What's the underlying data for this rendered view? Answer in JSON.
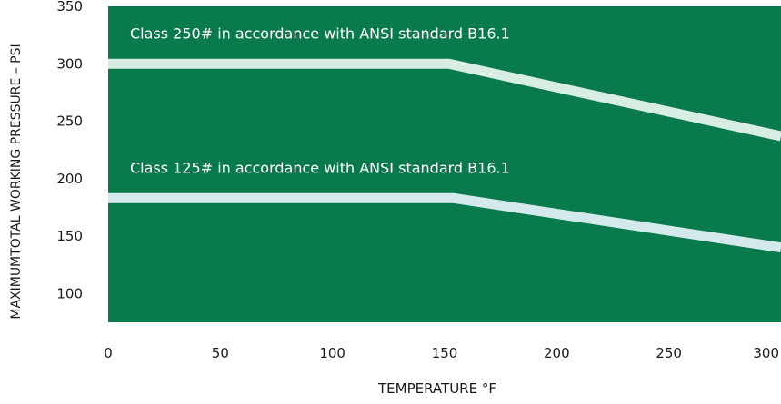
{
  "chart_data": {
    "type": "line",
    "xlabel": "TEMPERATURE  °F",
    "ylabel": "MAXIMUMTOTAL WORKING PRESSURE – PSI",
    "xlim": [
      0,
      300
    ],
    "ylim": [
      75,
      350
    ],
    "x_ticks": [
      0,
      50,
      100,
      150,
      200,
      250,
      300
    ],
    "y_ticks": [
      100,
      150,
      200,
      250,
      300,
      350
    ],
    "grid": false,
    "colors": {
      "plot_background": "#097a4b",
      "class_250_line": "#d8ede3",
      "class_125_line": "#d3e9ec",
      "annotation_text": "#ffffff",
      "axis_text": "#1a1a1a"
    },
    "series": [
      {
        "label": "Class 250# in accordance with ANSI standard B16.1",
        "x": [
          0,
          152,
          300
        ],
        "y": [
          300,
          300,
          237
        ]
      },
      {
        "label": "Class 125# in accordance with ANSI standard B16.1",
        "x": [
          0,
          154,
          300
        ],
        "y": [
          183,
          183,
          140
        ]
      }
    ]
  }
}
